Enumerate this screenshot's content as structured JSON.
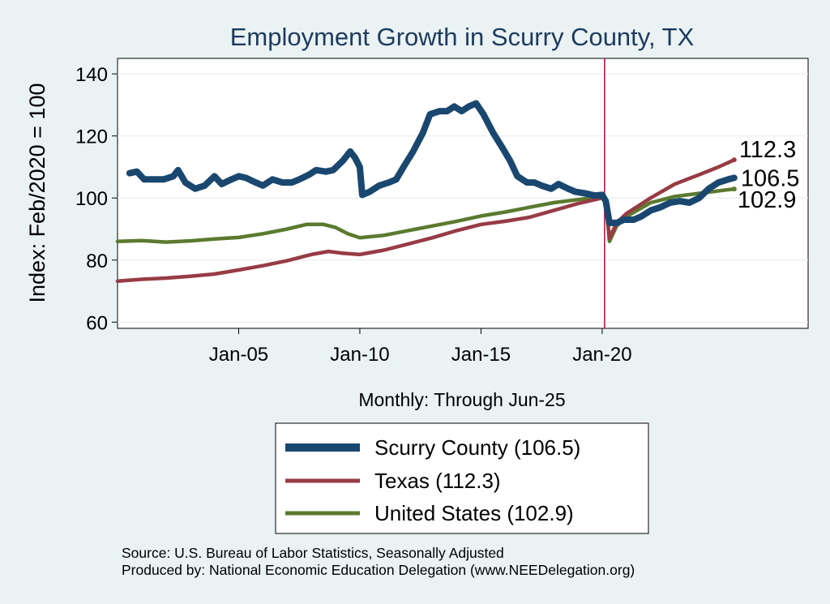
{
  "chart_data": {
    "type": "line",
    "title": "Employment Growth in Scurry  County, TX",
    "xlabel": "Monthly: Through Jun-25",
    "ylabel": "Index: Feb/2020 = 100",
    "ylim": [
      58,
      145
    ],
    "xlim": [
      2000.0,
      2028.5
    ],
    "y_ticks": [
      60,
      80,
      100,
      120,
      140
    ],
    "x_ticks": [
      {
        "value": 2005.0,
        "label": "Jan-05"
      },
      {
        "value": 2010.0,
        "label": "Jan-10"
      },
      {
        "value": 2015.0,
        "label": "Jan-15"
      },
      {
        "value": 2020.0,
        "label": "Jan-20"
      }
    ],
    "reference_line": {
      "x": 2020.1,
      "color": "#b0174a"
    },
    "grid": true,
    "series": [
      {
        "name": "Scurry  County",
        "legend": "Scurry  County (106.5)",
        "color": "#1a476f",
        "end_label": "106.5",
        "points": [
          [
            2000.5,
            108
          ],
          [
            2000.8,
            108.5
          ],
          [
            2001.1,
            106
          ],
          [
            2001.5,
            106
          ],
          [
            2001.9,
            106
          ],
          [
            2002.3,
            107
          ],
          [
            2002.5,
            109
          ],
          [
            2002.8,
            105
          ],
          [
            2003.2,
            103
          ],
          [
            2003.6,
            104
          ],
          [
            2004.0,
            107
          ],
          [
            2004.3,
            104.5
          ],
          [
            2004.7,
            106
          ],
          [
            2005.0,
            107
          ],
          [
            2005.3,
            106.5
          ],
          [
            2005.7,
            105
          ],
          [
            2006.0,
            104
          ],
          [
            2006.4,
            106
          ],
          [
            2006.8,
            105
          ],
          [
            2007.2,
            105
          ],
          [
            2007.5,
            106
          ],
          [
            2007.9,
            107.5
          ],
          [
            2008.2,
            109
          ],
          [
            2008.6,
            108.5
          ],
          [
            2008.9,
            109
          ],
          [
            2009.3,
            112
          ],
          [
            2009.6,
            115
          ],
          [
            2009.8,
            113
          ],
          [
            2010.0,
            110
          ],
          [
            2010.1,
            101
          ],
          [
            2010.4,
            102
          ],
          [
            2010.8,
            104
          ],
          [
            2011.2,
            105
          ],
          [
            2011.5,
            106
          ],
          [
            2011.8,
            110
          ],
          [
            2012.2,
            115
          ],
          [
            2012.6,
            121
          ],
          [
            2012.9,
            127
          ],
          [
            2013.3,
            128
          ],
          [
            2013.6,
            128
          ],
          [
            2013.9,
            129.5
          ],
          [
            2014.2,
            128
          ],
          [
            2014.5,
            129.5
          ],
          [
            2014.8,
            130.5
          ],
          [
            2015.1,
            127
          ],
          [
            2015.5,
            121
          ],
          [
            2015.9,
            116
          ],
          [
            2016.2,
            112
          ],
          [
            2016.5,
            107
          ],
          [
            2016.9,
            105
          ],
          [
            2017.2,
            105
          ],
          [
            2017.5,
            104
          ],
          [
            2017.9,
            103
          ],
          [
            2018.2,
            104.5
          ],
          [
            2018.6,
            103
          ],
          [
            2018.9,
            102
          ],
          [
            2019.3,
            101.5
          ],
          [
            2019.7,
            100.8
          ],
          [
            2020.0,
            101
          ],
          [
            2020.15,
            99
          ],
          [
            2020.3,
            92
          ],
          [
            2020.6,
            92
          ],
          [
            2020.9,
            93
          ],
          [
            2021.3,
            93
          ],
          [
            2021.6,
            94
          ],
          [
            2022.0,
            96
          ],
          [
            2022.4,
            97
          ],
          [
            2022.8,
            98.5
          ],
          [
            2023.2,
            99
          ],
          [
            2023.6,
            98.5
          ],
          [
            2024.0,
            100
          ],
          [
            2024.4,
            103
          ],
          [
            2024.8,
            105
          ],
          [
            2025.2,
            106
          ],
          [
            2025.45,
            106.5
          ]
        ]
      },
      {
        "name": "Texas",
        "legend": "Texas (112.3)",
        "color": "#973b44",
        "end_label": "112.3",
        "points": [
          [
            2000.0,
            73.2
          ],
          [
            2001.0,
            73.8
          ],
          [
            2002.0,
            74.2
          ],
          [
            2003.0,
            74.8
          ],
          [
            2004.0,
            75.5
          ],
          [
            2005.0,
            76.8
          ],
          [
            2006.0,
            78.2
          ],
          [
            2007.0,
            79.8
          ],
          [
            2008.0,
            81.8
          ],
          [
            2008.7,
            82.8
          ],
          [
            2009.3,
            82.2
          ],
          [
            2010.0,
            81.8
          ],
          [
            2011.0,
            83.2
          ],
          [
            2012.0,
            85.2
          ],
          [
            2013.0,
            87.2
          ],
          [
            2014.0,
            89.5
          ],
          [
            2015.0,
            91.5
          ],
          [
            2016.0,
            92.5
          ],
          [
            2017.0,
            93.8
          ],
          [
            2018.0,
            96.0
          ],
          [
            2019.0,
            98.2
          ],
          [
            2020.0,
            100
          ],
          [
            2020.15,
            99.2
          ],
          [
            2020.3,
            87
          ],
          [
            2020.6,
            92
          ],
          [
            2021.0,
            95
          ],
          [
            2022.0,
            100
          ],
          [
            2023.0,
            104.5
          ],
          [
            2024.0,
            107.5
          ],
          [
            2024.8,
            110
          ],
          [
            2025.45,
            112.3
          ]
        ]
      },
      {
        "name": "United States",
        "legend": "United States (102.9)",
        "color": "#5b7a2f",
        "end_label": "102.9",
        "points": [
          [
            2000.0,
            86
          ],
          [
            2001.0,
            86.3
          ],
          [
            2002.0,
            85.8
          ],
          [
            2003.0,
            86.2
          ],
          [
            2004.0,
            86.8
          ],
          [
            2005.0,
            87.3
          ],
          [
            2006.0,
            88.5
          ],
          [
            2007.0,
            90.0
          ],
          [
            2007.8,
            91.5
          ],
          [
            2008.5,
            91.5
          ],
          [
            2009.0,
            90.5
          ],
          [
            2009.5,
            88.5
          ],
          [
            2010.0,
            87.2
          ],
          [
            2011.0,
            88
          ],
          [
            2012.0,
            89.5
          ],
          [
            2013.0,
            91
          ],
          [
            2014.0,
            92.5
          ],
          [
            2015.0,
            94.2
          ],
          [
            2016.0,
            95.5
          ],
          [
            2017.0,
            97.0
          ],
          [
            2018.0,
            98.5
          ],
          [
            2019.0,
            99.5
          ],
          [
            2020.0,
            100.5
          ],
          [
            2020.15,
            99
          ],
          [
            2020.3,
            86
          ],
          [
            2020.6,
            91
          ],
          [
            2021.0,
            94
          ],
          [
            2022.0,
            98.5
          ],
          [
            2023.0,
            100.5
          ],
          [
            2024.0,
            101.5
          ],
          [
            2025.0,
            102.5
          ],
          [
            2025.45,
            102.9
          ]
        ]
      }
    ],
    "footer": [
      "Source: U.S. Bureau of Labor Statistics, Seasonally Adjusted",
      "Produced by: National Economic Education Delegation (www.NEEDelegation.org)"
    ]
  }
}
